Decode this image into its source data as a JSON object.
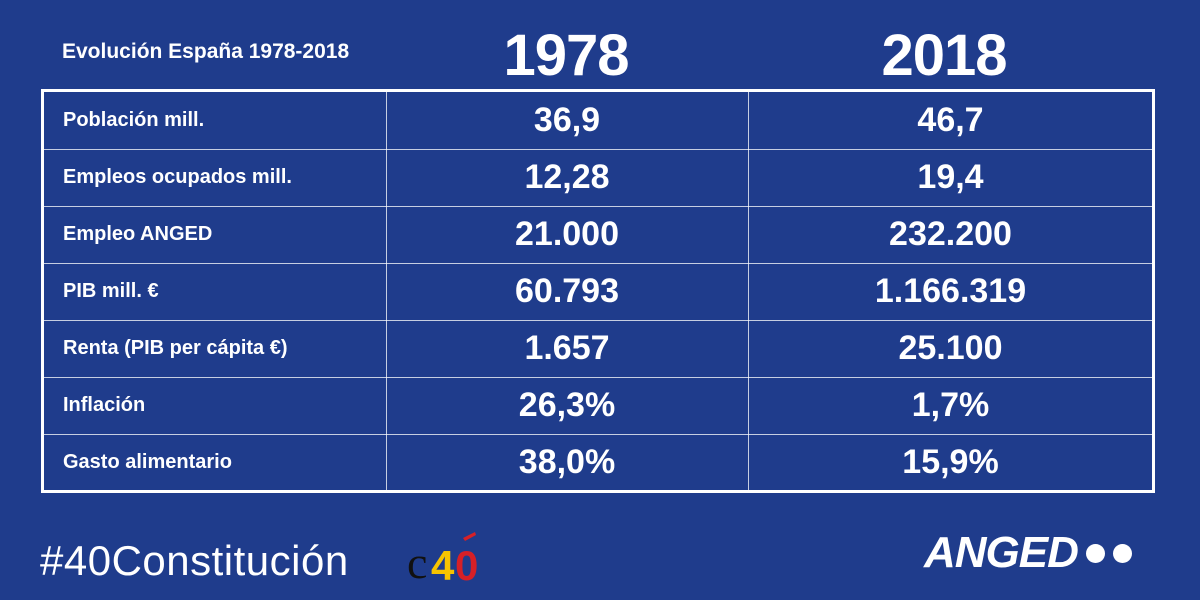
{
  "header": {
    "title": "Evolución España 1978-2018",
    "year_1": "1978",
    "year_2": "2018"
  },
  "table": {
    "rows": [
      {
        "label": "Población mill.",
        "v1978": "36,9",
        "v2018": "46,7"
      },
      {
        "label": "Empleos ocupados mill.",
        "v1978": "12,28",
        "v2018": "19,4"
      },
      {
        "label": "Empleo ANGED",
        "v1978": "21.000",
        "v2018": "232.200"
      },
      {
        "label": "PIB mill. €",
        "v1978": "60.793",
        "v2018": "1.166.319"
      },
      {
        "label": "Renta (PIB per cápita €)",
        "v1978": "1.657",
        "v2018": "25.100"
      },
      {
        "label": "Inflación",
        "v1978": "26,3%",
        "v2018": "1,7%"
      },
      {
        "label": "Gasto alimentario",
        "v1978": "38,0%",
        "v2018": "15,9%"
      }
    ]
  },
  "footer": {
    "hashtag": "#40Constitución",
    "c40_logo_text": "c40",
    "brand": "ANGED"
  },
  "colors": {
    "background": "#1f3c8c",
    "text": "#ffffff",
    "logo_red": "#d62027",
    "logo_yellow": "#f7c300",
    "logo_black": "#111111"
  }
}
